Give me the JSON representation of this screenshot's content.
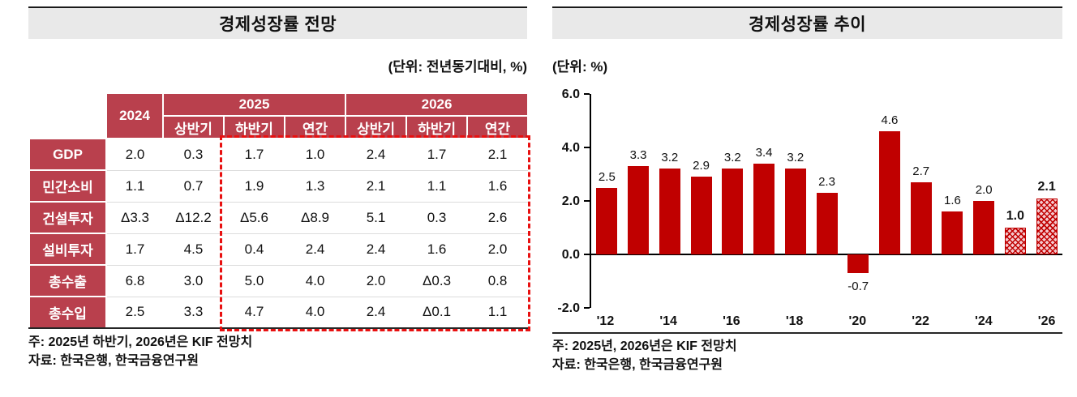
{
  "colors": {
    "title_bar_bg": "#e9e9e9",
    "table_header_bg": "#b9404d",
    "bar_fill": "#c00000",
    "forecast_bar_bg": "#f4c9ce",
    "highlight_box_border": "#e81010"
  },
  "left_panel": {
    "title": "경제성장률 전망",
    "unit_label": "(단위: 전년동기대비, %)",
    "table": {
      "year_2024": "2024",
      "group_2025": "2025",
      "group_2026": "2026",
      "sub_headers": [
        "상반기",
        "하반기",
        "연간",
        "상반기",
        "하반기",
        "연간"
      ],
      "rows": [
        {
          "label": "GDP",
          "values": [
            "2.0",
            "0.3",
            "1.7",
            "1.0",
            "2.4",
            "1.7",
            "2.1"
          ]
        },
        {
          "label": "민간소비",
          "values": [
            "1.1",
            "0.7",
            "1.9",
            "1.3",
            "2.1",
            "1.1",
            "1.6"
          ]
        },
        {
          "label": "건설투자",
          "values": [
            "Δ3.3",
            "Δ12.2",
            "Δ5.6",
            "Δ8.9",
            "5.1",
            "0.3",
            "2.6"
          ]
        },
        {
          "label": "설비투자",
          "values": [
            "1.7",
            "4.5",
            "0.4",
            "2.4",
            "2.4",
            "1.6",
            "2.0"
          ]
        },
        {
          "label": "총수출",
          "values": [
            "6.8",
            "3.0",
            "5.0",
            "4.0",
            "2.0",
            "Δ0.3",
            "0.8"
          ]
        },
        {
          "label": "총수입",
          "values": [
            "2.5",
            "3.3",
            "4.7",
            "4.0",
            "2.4",
            "Δ0.1",
            "1.1"
          ]
        }
      ]
    },
    "note": "주: 2025년 하반기, 2026년은 KIF 전망치",
    "source": "자료: 한국은행, 한국금융연구원"
  },
  "right_panel": {
    "title": "경제성장률 추이",
    "unit_label": "(단위: %)",
    "note": "주: 2025년, 2026년은 KIF 전망치",
    "source": "자료: 한국은행, 한국금융연구원"
  },
  "chart_data": [
    {
      "type": "table",
      "title": "경제성장률 전망",
      "unit": "전년동기대비, %",
      "columns": [
        "2024",
        "2025 상반기",
        "2025 하반기",
        "2025 연간",
        "2026 상반기",
        "2026 하반기",
        "2026 연간"
      ],
      "rows": [
        {
          "label": "GDP",
          "values": [
            2.0,
            0.3,
            1.7,
            1.0,
            2.4,
            1.7,
            2.1
          ]
        },
        {
          "label": "민간소비",
          "values": [
            1.1,
            0.7,
            1.9,
            1.3,
            2.1,
            1.1,
            1.6
          ]
        },
        {
          "label": "건설투자",
          "values": [
            -3.3,
            -12.2,
            -5.6,
            -8.9,
            5.1,
            0.3,
            2.6
          ]
        },
        {
          "label": "설비투자",
          "values": [
            1.7,
            4.5,
            0.4,
            2.4,
            2.4,
            1.6,
            2.0
          ]
        },
        {
          "label": "총수출",
          "values": [
            6.8,
            3.0,
            5.0,
            4.0,
            2.0,
            -0.3,
            0.8
          ]
        },
        {
          "label": "총수입",
          "values": [
            2.5,
            3.3,
            4.7,
            4.0,
            2.4,
            -0.1,
            1.1
          ]
        }
      ]
    },
    {
      "type": "bar",
      "title": "경제성장률 추이",
      "ylabel": "%",
      "x": [
        "'12",
        "'13",
        "'14",
        "'15",
        "'16",
        "'17",
        "'18",
        "'19",
        "'20",
        "'21",
        "'22",
        "'23",
        "'24",
        "'25",
        "'26"
      ],
      "values": [
        2.5,
        3.3,
        3.2,
        2.9,
        3.2,
        3.4,
        3.2,
        2.3,
        -0.7,
        4.6,
        2.7,
        1.6,
        2.0,
        1.0,
        2.1
      ],
      "forecast_indices": [
        13,
        14
      ],
      "ylim": [
        -2.0,
        6.0
      ],
      "yticks": [
        6.0,
        4.0,
        2.0,
        0.0,
        -2.0
      ],
      "xtick_labels": [
        "'12",
        "'14",
        "'16",
        "'18",
        "'20",
        "'22",
        "'24",
        "'26"
      ],
      "xtick_indices": [
        0,
        2,
        4,
        6,
        8,
        10,
        12,
        14
      ],
      "grid": false,
      "legend": false
    }
  ]
}
